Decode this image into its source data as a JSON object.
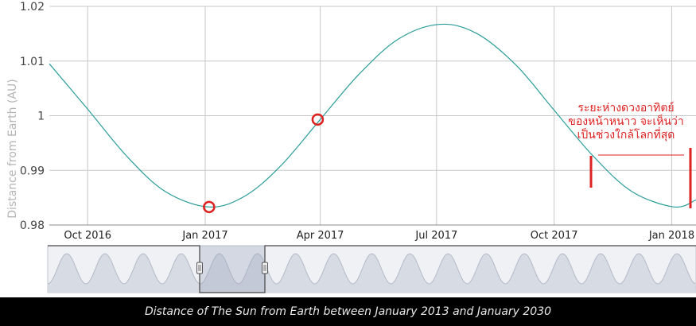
{
  "chart_data": {
    "type": "line",
    "ylabel": "Distance from Earth (AU)",
    "xlabel": "",
    "ylim": [
      0.98,
      1.02
    ],
    "y_ticks": [
      "0.98",
      "0.99",
      "1",
      "1.01",
      "1.02"
    ],
    "x_ticks": [
      "Oct 2016",
      "Jan 2017",
      "Apr 2017",
      "Jul 2017",
      "Oct 2017",
      "Jan 2018"
    ],
    "grid": true,
    "series": [
      {
        "x": [
          "2016-09-01",
          "2016-10-01",
          "2016-11-01",
          "2016-12-01",
          "2017-01-04",
          "2017-02-01",
          "2017-03-01",
          "2017-04-01",
          "2017-05-01",
          "2017-06-01",
          "2017-07-03",
          "2017-08-01",
          "2017-09-01",
          "2017-10-01",
          "2017-11-01",
          "2017-12-01",
          "2018-01-03",
          "2018-01-20"
        ],
        "values": [
          1.0095,
          1.0012,
          0.9925,
          0.9861,
          0.9833,
          0.9853,
          0.9908,
          0.9993,
          1.0075,
          1.014,
          1.0167,
          1.0151,
          1.0093,
          1.001,
          0.9925,
          0.9861,
          0.9833,
          0.9846
        ]
      }
    ],
    "highlighted_points": [
      {
        "x": "2017-01-04",
        "value": 0.9833
      },
      {
        "x": "2017-03-30",
        "value": 0.9993
      }
    ],
    "annotation": {
      "lines": [
        "ระยะห่างดวงอาทิตย์",
        "ของหน้าหนาว จะเห็นว่า",
        "เป็นช่วงใกล้โลกที่สุด"
      ],
      "color": "#dd2222"
    },
    "navigator": {
      "selected_start": "2016-09-01",
      "selected_end": "2018-01-20"
    }
  },
  "caption": "Distance of The Sun from Earth between January 2013 and January 2030",
  "colors": {
    "line": "#2a9d9a",
    "marker": "#dd2222",
    "grid": "#c8c8c8",
    "navigator_fill": "#9fa8c0"
  }
}
